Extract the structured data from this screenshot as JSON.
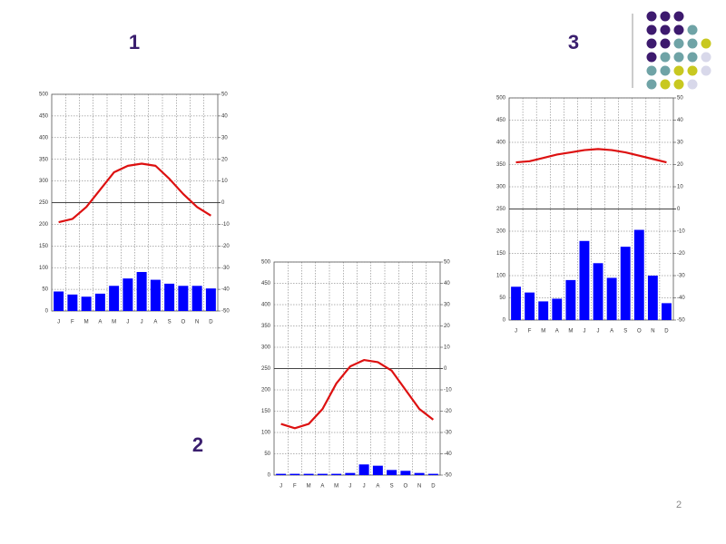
{
  "labels": [
    "1",
    "2",
    "3"
  ],
  "page_number": "2",
  "chart_data": [
    {
      "type": "climate",
      "categories": [
        "J",
        "F",
        "M",
        "A",
        "M",
        "J",
        "J",
        "A",
        "S",
        "O",
        "N",
        "D"
      ],
      "series": [
        {
          "color": "#0000ff",
          "values": [
            45,
            38,
            33,
            40,
            58,
            75,
            90,
            72,
            63,
            58,
            58,
            52
          ]
        },
        {
          "color": "#dd1111",
          "axis": "y2",
          "values": [
            -9,
            -7.5,
            -2,
            6,
            14,
            17,
            18,
            17,
            11,
            4,
            -2,
            -6
          ]
        }
      ],
      "ylim": [
        0,
        500
      ],
      "yticks": [
        0,
        50,
        100,
        150,
        200,
        250,
        300,
        350,
        400,
        450,
        500
      ],
      "y2lim": [
        -50,
        50
      ],
      "y2ticks": [
        -50,
        -40,
        -30,
        -20,
        -10,
        0,
        10,
        20,
        30,
        40,
        50
      ],
      "grid": true
    },
    {
      "type": "climate",
      "categories": [
        "J",
        "F",
        "M",
        "A",
        "M",
        "J",
        "J",
        "A",
        "S",
        "O",
        "N",
        "D"
      ],
      "series": [
        {
          "color": "#0000ff",
          "values": [
            3,
            3,
            3,
            3,
            3,
            5,
            25,
            22,
            12,
            10,
            5,
            3
          ]
        },
        {
          "color": "#dd1111",
          "axis": "y2",
          "values": [
            -26,
            -28,
            -26,
            -19,
            -7,
            1,
            4,
            3,
            -1,
            -10,
            -19,
            -24
          ]
        }
      ],
      "ylim": [
        0,
        500
      ],
      "yticks": [
        0,
        50,
        100,
        150,
        200,
        250,
        300,
        350,
        400,
        450,
        500
      ],
      "y2lim": [
        -50,
        50
      ],
      "y2ticks": [
        -50,
        -40,
        -30,
        -20,
        -10,
        0,
        10,
        20,
        30,
        40,
        50
      ],
      "grid": true
    },
    {
      "type": "climate",
      "categories": [
        "J",
        "F",
        "M",
        "A",
        "M",
        "J",
        "J",
        "A",
        "S",
        "O",
        "N",
        "D"
      ],
      "series": [
        {
          "color": "#0000ff",
          "values": [
            75,
            62,
            42,
            48,
            90,
            178,
            128,
            95,
            165,
            203,
            100,
            38
          ]
        },
        {
          "color": "#dd1111",
          "axis": "y2",
          "values": [
            21,
            21.5,
            23,
            24.5,
            25.5,
            26.5,
            27,
            26.5,
            25.5,
            24,
            22.5,
            21
          ]
        }
      ],
      "ylim": [
        0,
        500
      ],
      "yticks": [
        0,
        50,
        100,
        150,
        200,
        250,
        300,
        350,
        400,
        450,
        500
      ],
      "y2lim": [
        -50,
        50
      ],
      "y2ticks": [
        -50,
        -40,
        -30,
        -20,
        -10,
        0,
        10,
        20,
        30,
        40,
        50
      ],
      "grid": true
    }
  ]
}
